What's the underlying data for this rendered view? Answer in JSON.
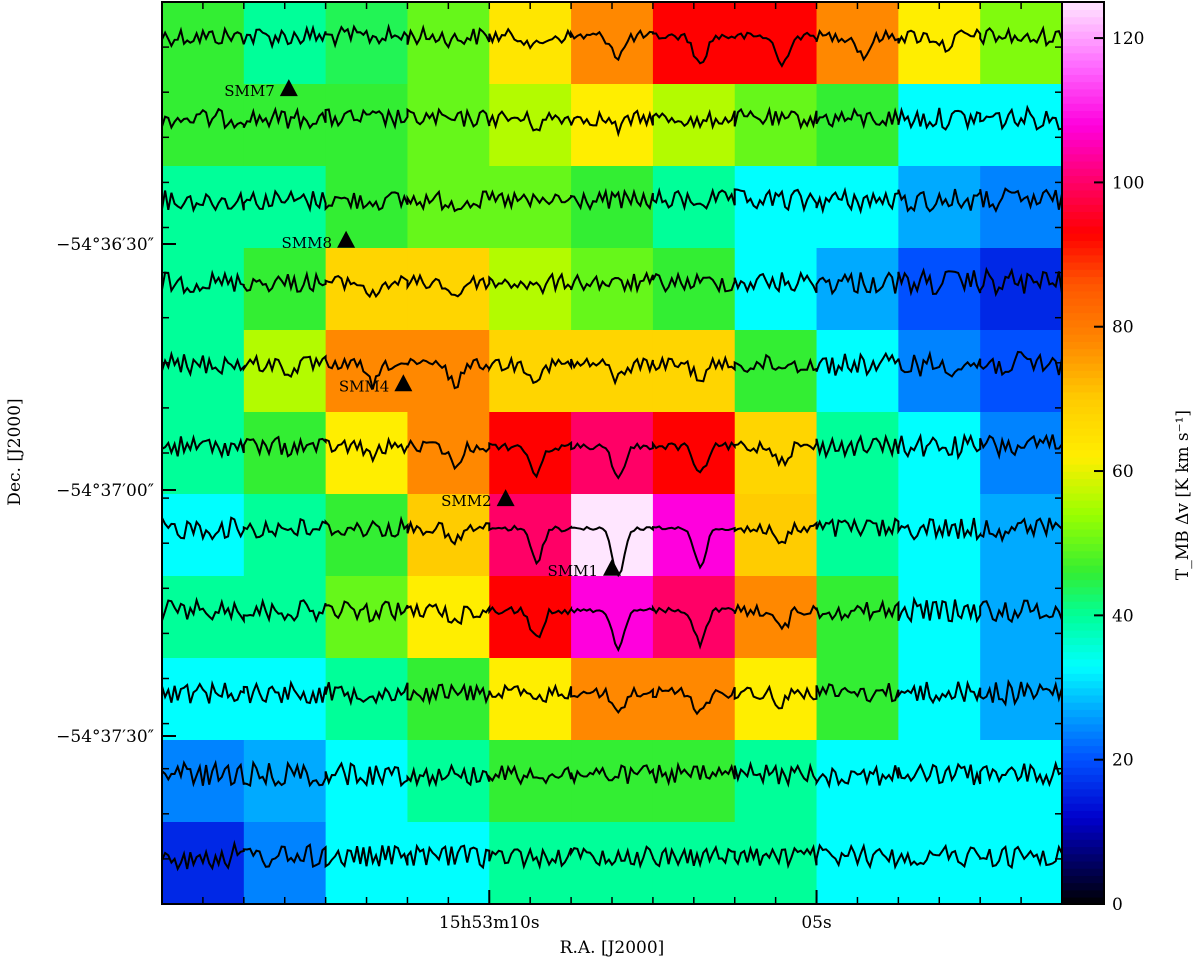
{
  "chart_data": {
    "type": "heatmap",
    "title": "",
    "xlabel": "R.A. [J2000]",
    "ylabel": "Dec. [J2000]",
    "colorbar_label": "T_MB Δv [K km s⁻¹]",
    "colorbar_range": [
      0,
      125
    ],
    "colorbar_ticks": [
      0,
      20,
      40,
      60,
      80,
      100,
      120
    ],
    "x_ticks": [
      {
        "label": "15h53m10s",
        "ra_sec": 10
      },
      {
        "label": "05s",
        "ra_sec": 5
      }
    ],
    "y_ticks": [
      {
        "label": "−54°36′30″"
      },
      {
        "label": "−54°37′00″"
      },
      {
        "label": "−54°37′30″"
      }
    ],
    "colorscale": [
      {
        "v": 0,
        "c": "#000000"
      },
      {
        "v": 12,
        "c": "#0000cc"
      },
      {
        "v": 20,
        "c": "#0050ff"
      },
      {
        "v": 27,
        "c": "#00aaff"
      },
      {
        "v": 33,
        "c": "#00ffff"
      },
      {
        "v": 40,
        "c": "#00ff99"
      },
      {
        "v": 46,
        "c": "#33ee33"
      },
      {
        "v": 54,
        "c": "#99ff00"
      },
      {
        "v": 62,
        "c": "#ffee00"
      },
      {
        "v": 70,
        "c": "#ffcc00"
      },
      {
        "v": 78,
        "c": "#ff8800"
      },
      {
        "v": 86,
        "c": "#ff5500"
      },
      {
        "v": 93,
        "c": "#ff0000"
      },
      {
        "v": 100,
        "c": "#ff0066"
      },
      {
        "v": 108,
        "c": "#ff00dd"
      },
      {
        "v": 116,
        "c": "#ff66ff"
      },
      {
        "v": 125,
        "c": "#ffe6ff"
      }
    ],
    "grid": [
      [
        46,
        40,
        44,
        50,
        64,
        78,
        93,
        93,
        78,
        62,
        52
      ],
      [
        46,
        46,
        46,
        50,
        56,
        62,
        56,
        50,
        46,
        33,
        33
      ],
      [
        40,
        40,
        46,
        50,
        50,
        46,
        40,
        33,
        33,
        27,
        24
      ],
      [
        40,
        46,
        68,
        68,
        56,
        50,
        46,
        33,
        27,
        20,
        16
      ],
      [
        40,
        56,
        78,
        78,
        68,
        68,
        68,
        46,
        33,
        24,
        20
      ],
      [
        40,
        46,
        62,
        78,
        93,
        100,
        93,
        68,
        40,
        33,
        24
      ],
      [
        33,
        40,
        46,
        70,
        100,
        125,
        108,
        70,
        40,
        33,
        27
      ],
      [
        40,
        40,
        50,
        62,
        93,
        108,
        100,
        78,
        46,
        33,
        27
      ],
      [
        33,
        33,
        40,
        46,
        62,
        78,
        78,
        62,
        46,
        33,
        27
      ],
      [
        24,
        27,
        33,
        40,
        46,
        46,
        46,
        40,
        33,
        33,
        33
      ],
      [
        16,
        24,
        33,
        33,
        40,
        40,
        40,
        40,
        33,
        33,
        33
      ]
    ],
    "sources": [
      {
        "name": "SMM7",
        "col": 1.55,
        "row": 1.05
      },
      {
        "name": "SMM8",
        "col": 2.25,
        "row": 2.9
      },
      {
        "name": "SMM4",
        "col": 2.95,
        "row": 4.65
      },
      {
        "name": "SMM2",
        "col": 4.2,
        "row": 6.05
      },
      {
        "name": "SMM1",
        "col": 5.5,
        "row": 6.9
      }
    ]
  }
}
